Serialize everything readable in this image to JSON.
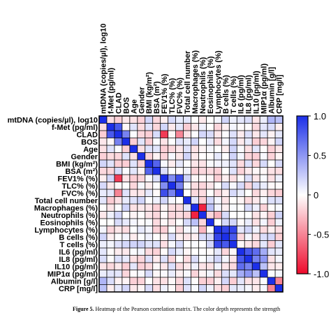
{
  "chart_data": {
    "type": "heatmap",
    "variables": [
      "mtDNA (copies/µl), log10",
      "f-Met (pg/ml)",
      "CLAD",
      "BOS",
      "Age",
      "Gender",
      "BMI (kg/m²)",
      "BSA (m²)",
      "FEV1% (%)",
      "TLC% (%)",
      "FVC% (%)",
      "Total cell number",
      "Macrophages (%)",
      "Neutrophils (%)",
      "Eosinophils (%)",
      "Lymphocytes (%)",
      "B cells (%)",
      "T cells (%)",
      "IL6 (pg/ml)",
      "IL8 (pg/ml)",
      "IL10 (pg/ml)",
      "MIP1α (pg/ml)",
      "Albumin [g/l]",
      "CRP [mg/l]"
    ],
    "colorbar": {
      "ticks": [
        "1.0",
        "0.5",
        "0",
        "-0.5",
        "-1.0"
      ],
      "tick_values": [
        1.0,
        0.5,
        0,
        -0.5,
        -1.0
      ],
      "range": [
        -1.0,
        1.0
      ],
      "colors": {
        "positive": "#1c2fe8",
        "neutral": "#ffffff",
        "negative": "#ee0a2c"
      }
    },
    "strong_cells": [
      {
        "row": 1,
        "col": 2,
        "value": 0.8
      },
      {
        "row": 2,
        "col": 3,
        "value": 0.6
      },
      {
        "row": 2,
        "col": 8,
        "value": -0.8
      },
      {
        "row": 2,
        "col": 10,
        "value": -0.5
      },
      {
        "row": 6,
        "col": 7,
        "value": 0.75
      },
      {
        "row": 8,
        "col": 9,
        "value": 0.55
      },
      {
        "row": 8,
        "col": 10,
        "value": 0.85
      },
      {
        "row": 9,
        "col": 10,
        "value": 0.6
      },
      {
        "row": 12,
        "col": 13,
        "value": -0.9
      },
      {
        "row": 12,
        "col": 14,
        "value": 0.3
      },
      {
        "row": 13,
        "col": 15,
        "value": -0.3
      },
      {
        "row": 15,
        "col": 16,
        "value": 0.9
      },
      {
        "row": 15,
        "col": 17,
        "value": 0.9
      },
      {
        "row": 16,
        "col": 17,
        "value": 0.8
      },
      {
        "row": 18,
        "col": 19,
        "value": 0.8
      },
      {
        "row": 18,
        "col": 20,
        "value": 0.7
      },
      {
        "row": 19,
        "col": 20,
        "value": 0.6
      },
      {
        "row": 18,
        "col": 21,
        "value": 0.4
      },
      {
        "row": 19,
        "col": 21,
        "value": 0.5
      },
      {
        "row": 20,
        "col": 21,
        "value": 0.3
      },
      {
        "row": 22,
        "col": 23,
        "value": -0.5
      },
      {
        "row": 0,
        "col": 22,
        "value": 0.35
      },
      {
        "row": 0,
        "col": 23,
        "value": 0.3
      }
    ]
  },
  "caption": {
    "label": "Figure 5.",
    "text": "Heatmap of the Pearson correlation matrix. The color depth represents the strength"
  }
}
